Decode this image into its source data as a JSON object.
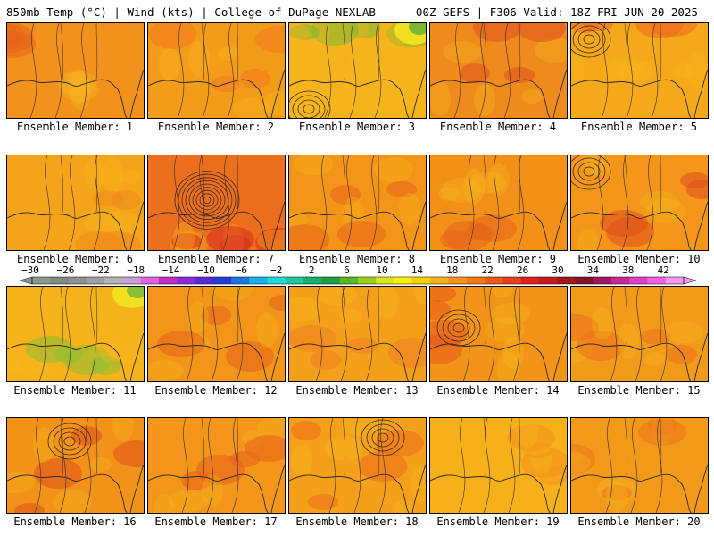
{
  "header": {
    "left": "850mb Temp (°C) | Wind (kts) | College of DuPage NEXLAB",
    "right": "00Z GEFS | F306 Valid: 18Z FRI JUN 20 2025"
  },
  "members": [
    {
      "label": "Ensemble Member: 1",
      "tone": "#f2911c",
      "low": null,
      "warm": "#e8651a"
    },
    {
      "label": "Ensemble Member: 2",
      "tone": "#f39c1a",
      "low": null,
      "warm": "#f07a1c"
    },
    {
      "label": "Ensemble Member: 3",
      "tone": "#f5b41c",
      "low": "sw",
      "warm": "#7ab832"
    },
    {
      "label": "Ensemble Member: 4",
      "tone": "#ef8a1c",
      "low": null,
      "warm": "#e0521e"
    },
    {
      "label": "Ensemble Member: 5",
      "tone": "#f5a81a",
      "low": "nw",
      "warm": "#ec6a1c"
    },
    {
      "label": "Ensemble Member: 6",
      "tone": "#f4a41a",
      "low": null,
      "warm": "#f08a1c"
    },
    {
      "label": "Ensemble Member: 7",
      "tone": "#ec6f1e",
      "low": "center",
      "warm": "#d92a20"
    },
    {
      "label": "Ensemble Member: 8",
      "tone": "#f39518",
      "low": null,
      "warm": "#e8651a"
    },
    {
      "label": "Ensemble Member: 9",
      "tone": "#f29018",
      "low": null,
      "warm": "#e8641c"
    },
    {
      "label": "Ensemble Member: 10",
      "tone": "#f3961a",
      "low": "nw",
      "warm": "#e04e1e"
    },
    {
      "label": "Ensemble Member: 11",
      "tone": "#f6b21a",
      "low": null,
      "warm": "#8cc034"
    },
    {
      "label": "Ensemble Member: 12",
      "tone": "#f29518",
      "low": null,
      "warm": "#e8621c"
    },
    {
      "label": "Ensemble Member: 13",
      "tone": "#f4a01a",
      "low": null,
      "warm": "#f08020"
    },
    {
      "label": "Ensemble Member: 14",
      "tone": "#f29418",
      "low": "w",
      "warm": "#e8581c"
    },
    {
      "label": "Ensemble Member: 15",
      "tone": "#f29a1a",
      "low": null,
      "warm": "#ec701c"
    },
    {
      "label": "Ensemble Member: 16",
      "tone": "#f29218",
      "low": "n",
      "warm": "#e0501e"
    },
    {
      "label": "Ensemble Member: 17",
      "tone": "#f3961a",
      "low": null,
      "warm": "#e8601c"
    },
    {
      "label": "Ensemble Member: 18",
      "tone": "#f4a01a",
      "low": "ne",
      "warm": "#ec6c1c"
    },
    {
      "label": "Ensemble Member: 19",
      "tone": "#f6b01a",
      "low": null,
      "warm": "#f2901c"
    },
    {
      "label": "Ensemble Member: 20",
      "tone": "#f39a1a",
      "low": null,
      "warm": "#ec761c"
    }
  ],
  "colorbar": {
    "ticks": [
      "−30",
      "−26",
      "−22",
      "−18",
      "−14",
      "−10",
      "−6",
      "−2",
      "2",
      "6",
      "10",
      "14",
      "18",
      "22",
      "26",
      "30",
      "34",
      "38",
      "42"
    ],
    "colors": [
      "#8a9a8a",
      "#7d8d7d",
      "#909090",
      "#a0a0a0",
      "#b4b4b4",
      "#c8a0d8",
      "#e060e0",
      "#c030c0",
      "#8a2ad8",
      "#5a2ad8",
      "#2a3ad8",
      "#1a78e0",
      "#18b4e8",
      "#20d8d8",
      "#20c8a0",
      "#18b070",
      "#20a040",
      "#58b828",
      "#98d020",
      "#d8e820",
      "#fff000",
      "#ffd000",
      "#f8b018",
      "#f59418",
      "#f27818",
      "#ee5a1a",
      "#e8401c",
      "#e02020",
      "#c81820",
      "#a01818",
      "#801428",
      "#a01860",
      "#c82890",
      "#e040c0",
      "#f060e0",
      "#f898f0"
    ]
  }
}
